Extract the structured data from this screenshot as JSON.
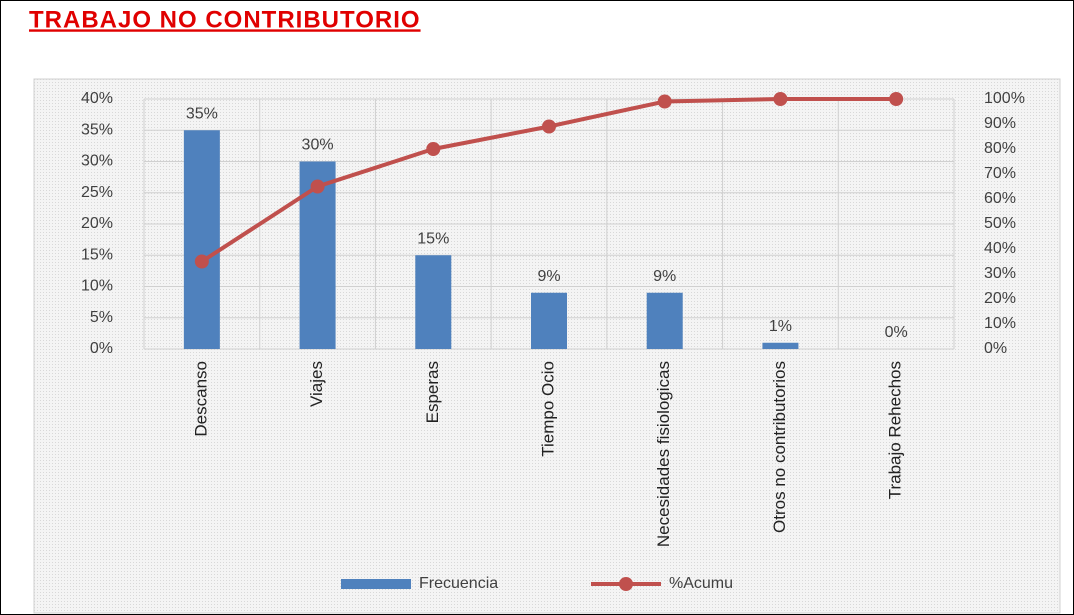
{
  "chart_data": {
    "type": "bar",
    "title": "TRABAJO NO CONTRIBUTORIO",
    "categories": [
      "Descanso",
      "Viajes",
      "Esperas",
      "Tiempo Ocio",
      "Necesidades fisiologicas",
      "Otros no contributorios",
      "Trabajo Rehechos"
    ],
    "series": [
      {
        "name": "Frecuencia",
        "type": "bar",
        "color": "#4f81bd",
        "values": [
          35,
          30,
          15,
          9,
          9,
          1,
          0
        ],
        "value_labels": [
          "35%",
          "30%",
          "15%",
          "9%",
          "9%",
          "1%",
          "0%"
        ]
      },
      {
        "name": "%Acumu",
        "type": "line",
        "color": "#c0504d",
        "axis": "y2",
        "values": [
          35,
          65,
          80,
          89,
          99,
          100,
          100
        ]
      }
    ],
    "ylim": [
      0,
      40
    ],
    "yticks": [
      {
        "value": 0,
        "label": "0%"
      },
      {
        "value": 5,
        "label": "5%"
      },
      {
        "value": 10,
        "label": "10%"
      },
      {
        "value": 15,
        "label": "15%"
      },
      {
        "value": 20,
        "label": "20%"
      },
      {
        "value": 25,
        "label": "25%"
      },
      {
        "value": 30,
        "label": "30%"
      },
      {
        "value": 35,
        "label": "35%"
      },
      {
        "value": 40,
        "label": "40%"
      }
    ],
    "y2lim": [
      0,
      100
    ],
    "y2ticks": [
      {
        "value": 0,
        "label": "0%"
      },
      {
        "value": 10,
        "label": "10%"
      },
      {
        "value": 20,
        "label": "20%"
      },
      {
        "value": 30,
        "label": "30%"
      },
      {
        "value": 40,
        "label": "40%"
      },
      {
        "value": 50,
        "label": "50%"
      },
      {
        "value": 60,
        "label": "60%"
      },
      {
        "value": 70,
        "label": "70%"
      },
      {
        "value": 80,
        "label": "80%"
      },
      {
        "value": 90,
        "label": "90%"
      },
      {
        "value": 100,
        "label": "100%"
      }
    ],
    "grid": true,
    "legend": "bottom"
  }
}
